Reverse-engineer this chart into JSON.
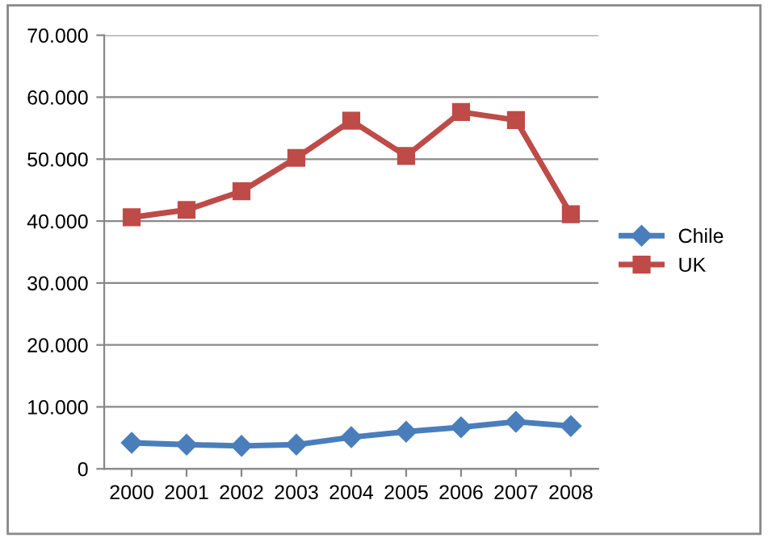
{
  "chart_data": {
    "type": "line",
    "categories": [
      "2000",
      "2001",
      "2002",
      "2003",
      "2004",
      "2005",
      "2006",
      "2007",
      "2008"
    ],
    "series": [
      {
        "name": "Chile",
        "color": "#4a7ebb",
        "marker": "diamond",
        "values": [
          4200,
          3900,
          3700,
          3900,
          5100,
          6000,
          6700,
          7600,
          6900
        ]
      },
      {
        "name": "UK",
        "color": "#be4b48",
        "marker": "square",
        "values": [
          40600,
          41800,
          44800,
          50200,
          56200,
          50500,
          57600,
          56300,
          41100
        ]
      }
    ],
    "ylim": [
      0,
      70000
    ],
    "yticks": [
      0,
      {
        "value": 10000,
        "label": "10.000"
      },
      {
        "value": 20000,
        "label": "20.000"
      },
      {
        "value": 30000,
        "label": "30.000"
      },
      {
        "value": 40000,
        "label": "40.000"
      },
      {
        "value": 50000,
        "label": "50.000"
      },
      {
        "value": 60000,
        "label": "60.000"
      },
      {
        "value": 70000,
        "label": "70.000"
      }
    ],
    "grid": "y",
    "legend": "right",
    "line_style": "solid"
  }
}
